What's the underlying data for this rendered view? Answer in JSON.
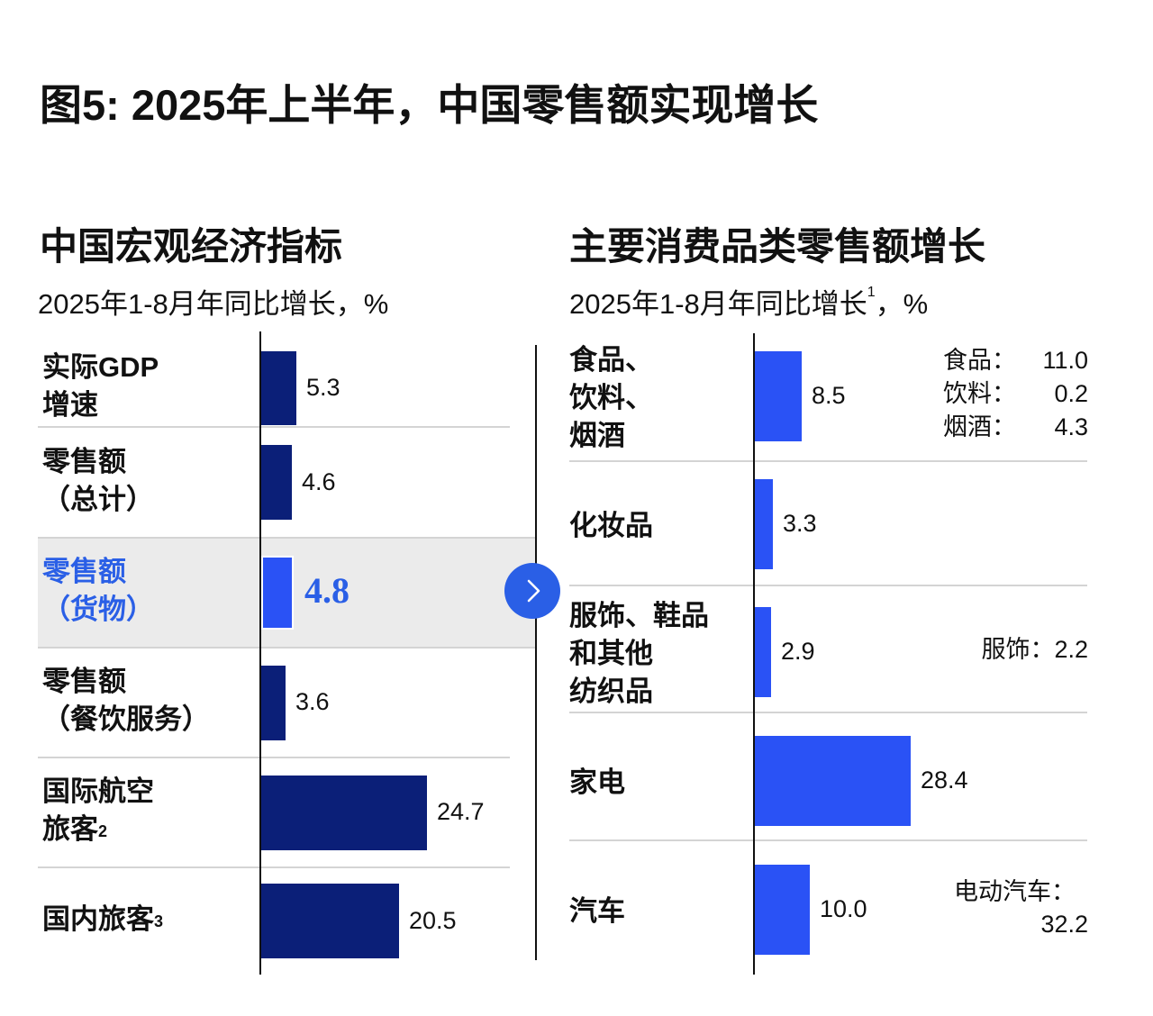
{
  "title": "图5: 2025年上半年，中国零售额实现增长",
  "colors": {
    "dark_bar": "#0b1f78",
    "bright_bar": "#2a52f5",
    "highlight_text": "#2a5fe6",
    "highlight_bg": "#ebebeb",
    "separator": "#d4d4d4",
    "axis": "#111111"
  },
  "nav": {
    "next_icon": "chevron-right-icon"
  },
  "chart_data": [
    {
      "type": "bar",
      "orientation": "horizontal",
      "title": "中国宏观经济指标",
      "subtitle": "2025年1-8月年同比增长，%",
      "categories": [
        [
          "实际GDP",
          "增速"
        ],
        [
          "零售额",
          "（总计）"
        ],
        [
          "零售额",
          "（货物）"
        ],
        [
          "零售额",
          "（餐饮服务）"
        ],
        [
          "国际航空",
          "旅客"
        ],
        [
          "国内旅客"
        ]
      ],
      "superscripts": [
        "",
        "",
        "",
        "",
        "2",
        "3"
      ],
      "values": [
        5.3,
        4.6,
        4.8,
        3.6,
        24.7,
        20.5
      ],
      "value_labels": [
        "5.3",
        "4.6",
        "4.8",
        "3.6",
        "24.7",
        "20.5"
      ],
      "highlighted_index": 2,
      "xlim": [
        0,
        35
      ]
    },
    {
      "type": "bar",
      "orientation": "horizontal",
      "title": "主要消费品类零售额增长",
      "subtitle": "2025年1-8月年同比增长",
      "subtitle_sup": "1",
      "subtitle_tail": "，%",
      "categories": [
        [
          "食品、",
          "饮料、",
          "烟酒"
        ],
        [
          "化妆品"
        ],
        [
          "服饰、鞋品",
          "和其他",
          "纺织品"
        ],
        [
          "家电"
        ],
        [
          "汽车"
        ]
      ],
      "values": [
        8.5,
        3.3,
        2.9,
        28.4,
        10.0
      ],
      "value_labels": [
        "8.5",
        "3.3",
        "2.9",
        "28.4",
        "10.0"
      ],
      "annotations": [
        {
          "row": 0,
          "items": [
            {
              "k": "食品：",
              "v": "11.0"
            },
            {
              "k": "饮料：",
              "v": "0.2"
            },
            {
              "k": "烟酒：",
              "v": "4.3"
            }
          ]
        },
        {
          "row": 2,
          "items": [
            {
              "k": "服饰：",
              "v": "2.2"
            }
          ]
        },
        {
          "row": 4,
          "lines": [
            "电动汽车：",
            "32.2"
          ]
        }
      ],
      "xlim": [
        0,
        60
      ]
    }
  ]
}
